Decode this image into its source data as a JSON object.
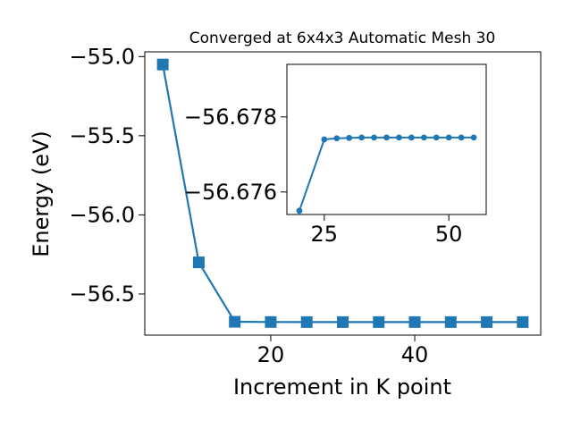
{
  "chart_data": [
    {
      "type": "line",
      "title": "Converged at 6x4x3 Automatic Mesh 30",
      "xlabel": "Increment in K point",
      "ylabel": "Energy (eV)",
      "xlim": [
        2.5,
        57.5
      ],
      "ylim": [
        -56.76,
        -54.97
      ],
      "xticks": [
        20,
        40
      ],
      "yticks": [
        -55.0,
        -55.5,
        -56.0,
        -56.5
      ],
      "tick_labels": {
        "x": [
          "20",
          "40"
        ],
        "y": [
          "−55.0",
          "−55.5",
          "−56.0",
          "−56.5"
        ]
      },
      "marker": "square",
      "color": "#1f77b4",
      "grid": false,
      "series": [
        {
          "x": [
            5,
            10,
            15,
            20,
            25,
            30,
            35,
            40,
            45,
            50,
            55
          ],
          "values": [
            -55.05,
            -56.3,
            -56.6755,
            -56.677,
            -56.6774,
            -56.6774,
            -56.6774,
            -56.6774,
            -56.6774,
            -56.6774,
            -56.6774
          ]
        }
      ]
    },
    {
      "type": "line",
      "title": "",
      "xlabel": "",
      "ylabel": "",
      "xlim": [
        17.5,
        57.5
      ],
      "ylim": [
        -56.6754,
        -56.6794
      ],
      "y_axis_inverted": true,
      "xticks": [
        25,
        50
      ],
      "yticks": [
        -56.678,
        -56.676
      ],
      "tick_labels": {
        "x": [
          "25",
          "50"
        ],
        "y": [
          "−56.678",
          "−56.676"
        ]
      },
      "marker": "circle",
      "color": "#1f77b4",
      "grid": false,
      "series": [
        {
          "x": [
            20,
            25,
            27.5,
            30,
            32.5,
            35,
            37.5,
            40,
            42.5,
            45,
            47.5,
            50,
            52.5,
            55
          ],
          "values": [
            -56.6755,
            -56.6774,
            -56.67743,
            -56.67744,
            -56.67745,
            -56.67745,
            -56.67745,
            -56.67745,
            -56.67745,
            -56.67745,
            -56.67745,
            -56.67745,
            -56.67745,
            -56.67745
          ]
        }
      ]
    }
  ]
}
